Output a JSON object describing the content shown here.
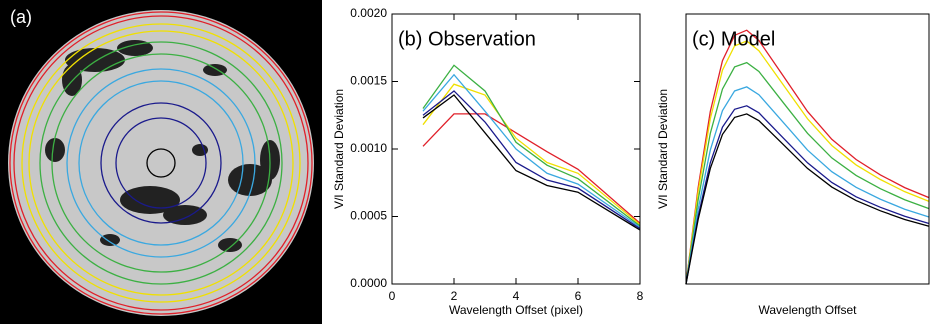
{
  "panel_a": {
    "label": "(a)"
  },
  "chart_data": [
    {
      "type": "line",
      "title": "(b) Observation",
      "x_label": "Wavelength Offset (pixel)",
      "y_label": "V/I Standard Deviation",
      "x": [
        1,
        2,
        3,
        4,
        5,
        6,
        8
      ],
      "xlim": [
        0,
        8
      ],
      "xticks": [
        0,
        2,
        4,
        6,
        8
      ],
      "ylim": [
        0,
        0.002
      ],
      "yticks": [
        {
          "value": 0,
          "label": "0.0000"
        },
        {
          "value": 0.0005,
          "label": "0.0005"
        },
        {
          "value": 0.001,
          "label": "0.0010"
        },
        {
          "value": 0.0015,
          "label": "0.0015"
        },
        {
          "value": 0.002,
          "label": "0.0020"
        }
      ],
      "series": [
        {
          "color": "#e0202a",
          "values": [
            0.00102,
            0.00126,
            0.00126,
            0.00112,
            0.00098,
            0.00085,
            0.00045
          ]
        },
        {
          "color": "#f0e000",
          "values": [
            0.00118,
            0.00148,
            0.0014,
            0.00108,
            0.0009,
            0.00082,
            0.00044
          ]
        },
        {
          "color": "#3cb043",
          "values": [
            0.0013,
            0.00162,
            0.00143,
            0.00105,
            0.00088,
            0.00078,
            0.00043
          ]
        },
        {
          "color": "#3aa8e0",
          "values": [
            0.00128,
            0.00155,
            0.00128,
            0.001,
            0.00082,
            0.00074,
            0.00042
          ]
        },
        {
          "color": "#1a1a8c",
          "values": [
            0.00125,
            0.00143,
            0.0012,
            0.0009,
            0.00077,
            0.00071,
            0.00041
          ]
        },
        {
          "color": "#000000",
          "values": [
            0.00123,
            0.0014,
            0.00112,
            0.00084,
            0.00073,
            0.00068,
            0.0004
          ]
        }
      ]
    },
    {
      "type": "line",
      "title": "(c) Model",
      "x_label": "Wavelength Offset",
      "y_label": "V/I Standard Deviation",
      "x": [
        0,
        0.5,
        1,
        1.5,
        2,
        2.5,
        3,
        4,
        5,
        6,
        7,
        8,
        9,
        10
      ],
      "xlim": [
        0,
        10
      ],
      "ylim": [
        0,
        10
      ],
      "series": [
        {
          "color": "#e0202a",
          "values": [
            0,
            3.57,
            6.39,
            8.27,
            9.21,
            9.4,
            9.02,
            7.71,
            6.39,
            5.36,
            4.61,
            4.04,
            3.57,
            3.2
          ]
        },
        {
          "color": "#f0e000",
          "values": [
            0,
            3.42,
            6.12,
            7.92,
            8.82,
            9.0,
            8.64,
            7.38,
            6.12,
            5.13,
            4.41,
            3.87,
            3.42,
            3.06
          ]
        },
        {
          "color": "#3cb043",
          "values": [
            0,
            3.12,
            5.58,
            7.22,
            8.04,
            8.2,
            7.87,
            6.72,
            5.58,
            4.67,
            4.02,
            3.53,
            3.12,
            2.79
          ]
        },
        {
          "color": "#3aa8e0",
          "values": [
            0,
            2.77,
            4.96,
            6.42,
            7.15,
            7.3,
            7.01,
            5.99,
            4.96,
            4.16,
            3.58,
            3.14,
            2.77,
            2.48
          ]
        },
        {
          "color": "#1a1a8c",
          "values": [
            0,
            2.51,
            4.49,
            5.81,
            6.47,
            6.6,
            6.34,
            5.41,
            4.49,
            3.76,
            3.23,
            2.84,
            2.51,
            2.24
          ]
        },
        {
          "color": "#000000",
          "values": [
            0,
            2.39,
            4.28,
            5.54,
            6.17,
            6.3,
            6.05,
            5.17,
            4.28,
            3.59,
            3.09,
            2.71,
            2.39,
            2.14
          ]
        }
      ]
    }
  ]
}
